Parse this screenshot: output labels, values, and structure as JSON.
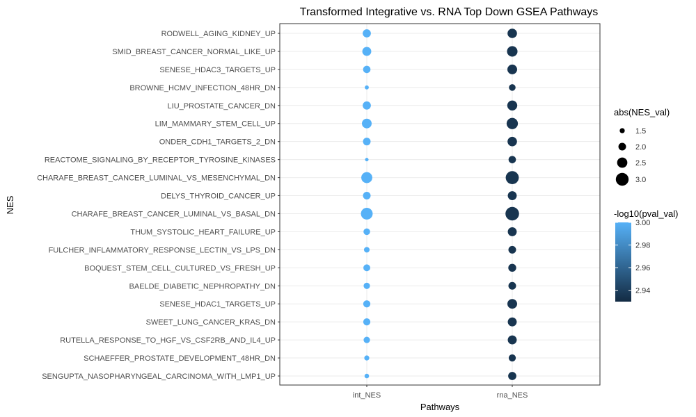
{
  "chart_data": {
    "type": "scatter",
    "title": "Transformed Integrative vs. RNA Top Down GSEA Pathways",
    "xlabel": "Pathways",
    "ylabel": "NES",
    "grid": true,
    "categories_x": [
      "int_NES",
      "rna_NES"
    ],
    "categories_y": [
      "RODWELL_AGING_KIDNEY_UP",
      "SMID_BREAST_CANCER_NORMAL_LIKE_UP",
      "SENESE_HDAC3_TARGETS_UP",
      "BROWNE_HCMV_INFECTION_48HR_DN",
      "LIU_PROSTATE_CANCER_DN",
      "LIM_MAMMARY_STEM_CELL_UP",
      "ONDER_CDH1_TARGETS_2_DN",
      "REACTOME_SIGNALING_BY_RECEPTOR_TYROSINE_KINASES",
      "CHARAFE_BREAST_CANCER_LUMINAL_VS_MESENCHYMAL_DN",
      "DELYS_THYROID_CANCER_UP",
      "CHARAFE_BREAST_CANCER_LUMINAL_VS_BASAL_DN",
      "THUM_SYSTOLIC_HEART_FAILURE_UP",
      "FULCHER_INFLAMMATORY_RESPONSE_LECTIN_VS_LPS_DN",
      "BOQUEST_STEM_CELL_CULTURED_VS_FRESH_UP",
      "BAELDE_DIABETIC_NEPHROPATHY_DN",
      "SENESE_HDAC1_TARGETS_UP",
      "SWEET_LUNG_CANCER_KRAS_DN",
      "RUTELLA_RESPONSE_TO_HGF_VS_CSF2RB_AND_IL4_UP",
      "SCHAEFFER_PROSTATE_DEVELOPMENT_48HR_DN",
      "SENGUPTA_NASOPHARYNGEAL_CARCINOMA_WITH_LMP1_UP"
    ],
    "series": [
      {
        "name": "int_NES",
        "abs_nes": [
          2.1,
          2.25,
          1.95,
          1.3,
          2.1,
          2.4,
          2.0,
          1.2,
          2.65,
          2.0,
          2.8,
          1.8,
          1.6,
          1.85,
          1.75,
          1.9,
          1.9,
          1.75,
          1.5,
          1.4
        ],
        "neg_log10_pval": [
          3.0,
          3.0,
          3.0,
          3.0,
          3.0,
          3.0,
          3.0,
          3.0,
          3.0,
          3.0,
          3.0,
          3.0,
          3.0,
          3.0,
          3.0,
          3.0,
          3.0,
          3.0,
          3.0,
          3.0
        ]
      },
      {
        "name": "rna_NES",
        "abs_nes": [
          2.35,
          2.55,
          2.4,
          1.8,
          2.45,
          2.7,
          2.35,
          1.95,
          3.05,
          2.25,
          3.15,
          2.25,
          2.0,
          2.05,
          2.0,
          2.4,
          2.25,
          2.25,
          1.9,
          2.1
        ],
        "neg_log10_pval": [
          2.935,
          2.935,
          2.935,
          2.935,
          2.935,
          2.935,
          2.935,
          2.935,
          2.935,
          2.935,
          2.935,
          2.935,
          2.935,
          2.935,
          2.935,
          2.935,
          2.935,
          2.935,
          2.935,
          2.935
        ]
      }
    ],
    "size_legend": {
      "title": "abs(NES_val)",
      "values": [
        1.5,
        2.0,
        2.5,
        3.0
      ],
      "labels": [
        "1.5",
        "2.0",
        "2.5",
        "3.0"
      ]
    },
    "color_legend": {
      "title": "-log10(pval_val)",
      "min": 2.93,
      "max": 3.0,
      "ticks": [
        2.94,
        2.96,
        2.98,
        3.0
      ],
      "tick_labels": [
        "2.94",
        "2.96",
        "2.98",
        "3.00"
      ],
      "low_color": "#132B43",
      "high_color": "#56B1F7"
    },
    "legend_position": "right"
  }
}
